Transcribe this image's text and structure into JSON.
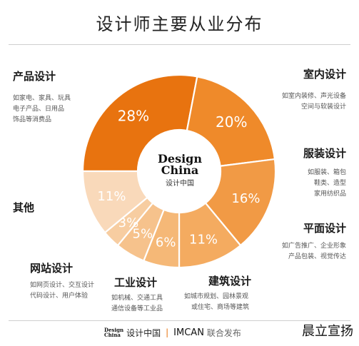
{
  "title": "设计师主要从业分布",
  "center_logo": {
    "line1": "Design",
    "line2": "China",
    "sub": "设计中国"
  },
  "categories": {
    "product": {
      "name": "产品设计",
      "desc": [
        "如家电、家具、玩具",
        "电子产品、日用品",
        "饰品等消费品"
      ]
    },
    "interior": {
      "name": "室内设计",
      "desc": [
        "如室内装修、声光设备",
        "空间与软装设计"
      ]
    },
    "fashion": {
      "name": "服装设计",
      "desc": [
        "如服装、箱包",
        "鞋类、造型",
        "家用纺织品"
      ]
    },
    "graphic": {
      "name": "平面设计",
      "desc": [
        "如广告推广、企业形象",
        "产品包装、视觉传达"
      ]
    },
    "architecture": {
      "name": "建筑设计",
      "desc": [
        "如城市规划、园林景观",
        "或住宅、商场等建筑"
      ]
    },
    "industrial": {
      "name": "工业设计",
      "desc": [
        "如机械、交通工具",
        "通信设备等工业品"
      ]
    },
    "web": {
      "name": "网站设计",
      "desc": [
        "如网页设计、交互设计",
        "代码设计、用户体验"
      ]
    },
    "other": {
      "name": "其他",
      "desc": []
    }
  },
  "footer": {
    "logo1": "Design",
    "logo1b": "China",
    "text1": "设计中国",
    "sep": "|",
    "brand2": "IMCAN",
    "text2": "联合发布"
  },
  "signature": "晨立宣扬",
  "chart_data": {
    "type": "pie",
    "donut": true,
    "title": "设计师主要从业分布",
    "slices": [
      {
        "label": "产品设计",
        "value": 28,
        "text": "28%",
        "color": "#e8730f"
      },
      {
        "label": "室内设计",
        "value": 20,
        "text": "20%",
        "color": "#ef8a2a"
      },
      {
        "label": "服装设计",
        "value": 16,
        "text": "16%",
        "color": "#f19a45"
      },
      {
        "label": "平面设计",
        "value": 11,
        "text": "11%",
        "color": "#f4ab60"
      },
      {
        "label": "建筑设计",
        "value": 6,
        "text": "6%",
        "color": "#f5b877"
      },
      {
        "label": "工业设计",
        "value": 5,
        "text": "5%",
        "color": "#f6c28c"
      },
      {
        "label": "网站设计",
        "value": 3,
        "text": "3%",
        "color": "#f7cda1"
      },
      {
        "label": "其他",
        "value": 11,
        "text": "11%",
        "color": "#f9d9ba"
      }
    ]
  }
}
